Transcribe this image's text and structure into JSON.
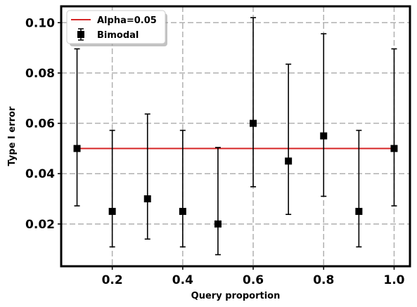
{
  "chart_data": {
    "type": "scatter",
    "xlabel": "Query proportion",
    "ylabel": "Type I error",
    "xlim": [
      0.055,
      1.045
    ],
    "ylim": [
      0.0032,
      0.1065
    ],
    "xticks": [
      0.2,
      0.4,
      0.6,
      0.8,
      1.0
    ],
    "xtick_labels": [
      "0.2",
      "0.4",
      "0.6",
      "0.8",
      "1.0"
    ],
    "yticks": [
      0.02,
      0.04,
      0.06,
      0.08,
      0.1
    ],
    "ytick_labels": [
      "0.02",
      "0.04",
      "0.06",
      "0.08",
      "0.10"
    ],
    "grid": true,
    "legend_position": "top-left",
    "reference_line": {
      "name": "Alpha=0.05",
      "y": 0.05,
      "x_range": [
        0.1,
        1.0
      ],
      "color": "#d62728"
    },
    "series": [
      {
        "name": "Bimodal",
        "color": "#000000",
        "marker": "square",
        "x": [
          0.1,
          0.2,
          0.3,
          0.4,
          0.5,
          0.6,
          0.7,
          0.8,
          0.9,
          1.0
        ],
        "y": [
          0.05,
          0.025,
          0.03,
          0.025,
          0.02,
          0.06,
          0.045,
          0.055,
          0.025,
          0.05
        ],
        "y_lower": [
          0.0272,
          0.0109,
          0.014,
          0.0109,
          0.0078,
          0.0348,
          0.0238,
          0.031,
          0.0109,
          0.0272
        ],
        "y_upper": [
          0.0896,
          0.0572,
          0.0637,
          0.0572,
          0.0504,
          0.102,
          0.0835,
          0.0956,
          0.0572,
          0.0896
        ]
      }
    ]
  }
}
